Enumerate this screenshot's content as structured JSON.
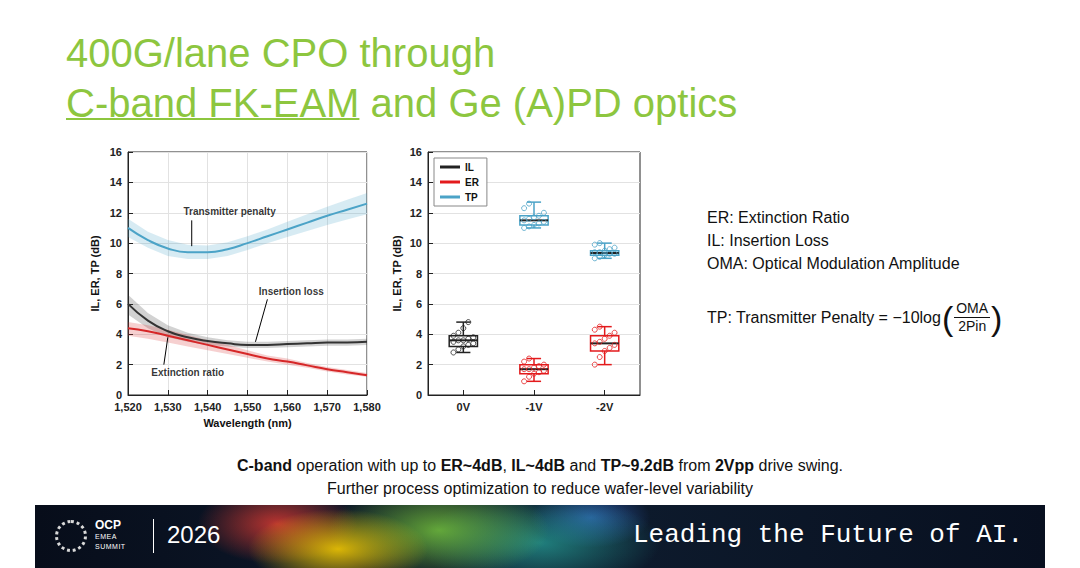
{
  "title": {
    "line1": "400G/lane CPO through",
    "line2_underlined": "C-band FK-EAM",
    "line2_rest": " and Ge (A)PD optics"
  },
  "definitions": [
    "ER: Extinction Ratio",
    "IL: Insertion Loss",
    "OMA: Optical Modulation Amplitude"
  ],
  "formula": {
    "lhs": "TP: Transmitter Penalty = −10log",
    "left_paren": "(",
    "numerator": "OMA",
    "denominator": "2Pin",
    "right_paren": ")"
  },
  "summary": {
    "line1": [
      {
        "text": "C-band",
        "bold": true
      },
      {
        "text": " operation with up to ",
        "bold": false
      },
      {
        "text": "ER~4dB",
        "bold": true
      },
      {
        "text": ", ",
        "bold": false
      },
      {
        "text": "IL~4dB",
        "bold": true
      },
      {
        "text": " and ",
        "bold": false
      },
      {
        "text": "TP~9.2dB",
        "bold": true
      },
      {
        "text": " from ",
        "bold": false
      },
      {
        "text": "2Vpp",
        "bold": true
      },
      {
        "text": " drive swing.",
        "bold": false
      }
    ],
    "line2": "Further process optimization to reduce wafer-level variability"
  },
  "footer": {
    "logo_lines": [
      "OCP",
      "EMEA",
      "SUMMIT"
    ],
    "year": "2026",
    "tagline": "Leading the Future of AI."
  },
  "chart_data": [
    {
      "type": "line",
      "x_label": "Wavelength (nm)",
      "y_label": "IL, ER, TP (dB)",
      "x": [
        1520,
        1525,
        1530,
        1535,
        1540,
        1545,
        1550,
        1555,
        1560,
        1565,
        1570,
        1575,
        1580
      ],
      "xlim": [
        1520,
        1580
      ],
      "xticks": [
        1520,
        1530,
        1540,
        1550,
        1560,
        1570,
        1580
      ],
      "ylim": [
        0,
        16
      ],
      "yticks": [
        0,
        2,
        4,
        6,
        8,
        10,
        12,
        14,
        16
      ],
      "grid": true,
      "series": [
        {
          "name": "Transmitter penalty",
          "color": "#4ba3c7",
          "line_style": "solid",
          "values": [
            11.0,
            10.2,
            9.65,
            9.4,
            9.4,
            9.6,
            10.0,
            10.45,
            10.9,
            11.35,
            11.8,
            12.2,
            12.6
          ],
          "band_lower": [
            10.4,
            9.7,
            9.15,
            8.95,
            8.95,
            9.15,
            9.55,
            10.0,
            10.4,
            10.8,
            11.2,
            11.55,
            11.9
          ],
          "band_upper": [
            11.6,
            10.75,
            10.2,
            9.9,
            9.85,
            10.05,
            10.45,
            10.9,
            11.4,
            11.9,
            12.4,
            12.85,
            13.3
          ],
          "label_at": [
            1545.5,
            12.1
          ],
          "leader": [
            [
              1536,
              11.5
            ],
            [
              1536,
              9.8
            ]
          ]
        },
        {
          "name": "Insertion loss",
          "color": "#333333",
          "line_style": "solid",
          "values": [
            6.0,
            4.9,
            4.2,
            3.8,
            3.55,
            3.4,
            3.3,
            3.3,
            3.35,
            3.4,
            3.45,
            3.45,
            3.5
          ],
          "band_lower": [
            5.3,
            4.4,
            3.8,
            3.5,
            3.3,
            3.2,
            3.1,
            3.1,
            3.15,
            3.2,
            3.25,
            3.25,
            3.3
          ],
          "band_upper": [
            6.6,
            5.4,
            4.6,
            4.1,
            3.8,
            3.6,
            3.5,
            3.5,
            3.55,
            3.6,
            3.65,
            3.65,
            3.7
          ],
          "label_at": [
            1561,
            6.8
          ],
          "leader": [
            [
              1555,
              6.3
            ],
            [
              1552,
              3.5
            ]
          ]
        },
        {
          "name": "Extinction ratio",
          "color": "#d62728",
          "line_style": "solid",
          "values": [
            4.4,
            4.2,
            3.9,
            3.6,
            3.3,
            3.0,
            2.7,
            2.4,
            2.2,
            1.95,
            1.7,
            1.5,
            1.3
          ],
          "band_lower": [
            3.9,
            3.7,
            3.45,
            3.2,
            2.95,
            2.7,
            2.45,
            2.2,
            2.0,
            1.8,
            1.55,
            1.35,
            1.2
          ],
          "band_upper": [
            4.8,
            4.6,
            4.3,
            3.95,
            3.6,
            3.3,
            2.95,
            2.6,
            2.4,
            2.1,
            1.85,
            1.65,
            1.45
          ],
          "label_at": [
            1535,
            1.45
          ],
          "leader": [
            [
              1529,
              2.0
            ],
            [
              1530,
              3.8
            ]
          ]
        }
      ]
    },
    {
      "type": "boxplot",
      "y_label": "IL, ER, TP (dB)",
      "categories": [
        "0V",
        "-1V",
        "-2V"
      ],
      "ylim": [
        0,
        16
      ],
      "yticks": [
        0,
        2,
        4,
        6,
        8,
        10,
        12,
        14,
        16
      ],
      "grid": true,
      "legend": "upper left",
      "series": [
        {
          "name": "IL",
          "color": "#222222",
          "marker": "circle",
          "values": [
            [
              2.8,
              3.2,
              3.6,
              3.9,
              4.8
            ],
            null,
            null
          ],
          "points": [
            [
              2.8,
              3.0,
              3.2,
              3.3,
              3.4,
              3.5,
              3.6,
              3.6,
              3.7,
              3.8,
              3.9,
              4.1,
              4.4,
              4.8
            ],
            null,
            null
          ]
        },
        {
          "name": "ER",
          "color": "#e31a1c",
          "marker": "circle",
          "values": [
            null,
            [
              0.9,
              1.4,
              1.7,
              2.0,
              2.4
            ],
            [
              2.0,
              2.9,
              3.4,
              3.9,
              4.5
            ]
          ],
          "points": [
            null,
            [
              0.9,
              1.2,
              1.4,
              1.5,
              1.6,
              1.7,
              1.7,
              1.8,
              1.9,
              2.0,
              2.2,
              2.4
            ],
            [
              2.0,
              2.5,
              2.9,
              3.1,
              3.3,
              3.4,
              3.5,
              3.7,
              3.9,
              4.1,
              4.3,
              4.5
            ]
          ]
        },
        {
          "name": "TP",
          "color": "#4ba3c7",
          "marker": "circle",
          "values": [
            null,
            [
              11.0,
              11.2,
              11.5,
              11.8,
              12.7
            ],
            [
              9.0,
              9.2,
              9.35,
              9.5,
              10.0
            ]
          ],
          "points": [
            null,
            [
              11.0,
              11.1,
              11.2,
              11.3,
              11.4,
              11.5,
              11.6,
              11.7,
              11.8,
              12.0,
              12.3,
              12.6
            ],
            [
              9.0,
              9.1,
              9.2,
              9.3,
              9.3,
              9.4,
              9.4,
              9.5,
              9.6,
              9.7,
              9.9,
              10.0
            ]
          ]
        }
      ]
    }
  ]
}
